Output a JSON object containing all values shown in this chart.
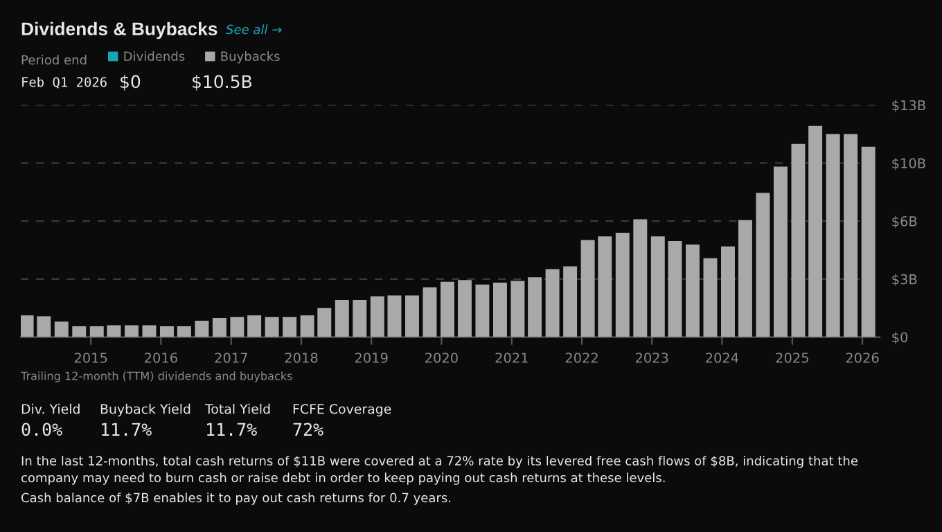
{
  "chart_data": {
    "type": "bar",
    "title": "Dividends & Buybacks",
    "x": [
      "2014-02",
      "2014-05",
      "2014-08",
      "2014-11",
      "2015-02",
      "2015-05",
      "2015-08",
      "2015-11",
      "2016-02",
      "2016-05",
      "2016-08",
      "2016-11",
      "2017-02",
      "2017-05",
      "2017-08",
      "2017-11",
      "2018-02",
      "2018-05",
      "2018-08",
      "2018-11",
      "2019-02",
      "2019-05",
      "2019-08",
      "2019-11",
      "2020-02",
      "2020-05",
      "2020-08",
      "2020-11",
      "2021-02",
      "2021-05",
      "2021-08",
      "2021-11",
      "2022-02",
      "2022-05",
      "2022-08",
      "2022-11",
      "2023-02",
      "2023-05",
      "2023-08",
      "2023-11",
      "2024-02",
      "2024-05",
      "2024-08",
      "2024-11",
      "2025-02",
      "2025-05",
      "2025-08",
      "2025-11",
      "2026-02"
    ],
    "series": [
      {
        "name": "Dividends",
        "color": "#1aa3b4",
        "values": [
          0,
          0,
          0,
          0,
          0,
          0,
          0,
          0,
          0,
          0,
          0,
          0,
          0,
          0,
          0,
          0,
          0,
          0,
          0,
          0,
          0,
          0,
          0,
          0,
          0,
          0,
          0,
          0,
          0,
          0,
          0,
          0,
          0,
          0,
          0,
          0,
          0,
          0,
          0,
          0,
          0,
          0,
          0,
          0,
          0,
          0,
          0,
          0,
          0
        ]
      },
      {
        "name": "Buybacks",
        "color": "#a9a9a9",
        "values": [
          1.2,
          1.15,
          0.85,
          0.6,
          0.6,
          0.65,
          0.65,
          0.65,
          0.6,
          0.6,
          0.9,
          1.05,
          1.1,
          1.2,
          1.1,
          1.1,
          1.2,
          1.6,
          2.05,
          2.05,
          2.25,
          2.3,
          2.3,
          2.75,
          3.05,
          3.15,
          2.9,
          3.0,
          3.1,
          3.3,
          3.75,
          3.9,
          5.35,
          5.55,
          5.75,
          6.5,
          5.55,
          5.3,
          5.1,
          4.35,
          5.0,
          6.45,
          7.95,
          9.4,
          10.65,
          11.65,
          11.2,
          11.2,
          10.5
        ]
      }
    ],
    "xlim": [
      "2014-01",
      "2026-04"
    ],
    "xticks": [
      {
        "value": "2015",
        "label": "2015"
      },
      {
        "value": "2016",
        "label": "2016"
      },
      {
        "value": "2017",
        "label": "2017"
      },
      {
        "value": "2018",
        "label": "2018"
      },
      {
        "value": "2019",
        "label": "2019"
      },
      {
        "value": "2020",
        "label": "2020"
      },
      {
        "value": "2021",
        "label": "2021"
      },
      {
        "value": "2022",
        "label": "2022"
      },
      {
        "value": "2023",
        "label": "2023"
      },
      {
        "value": "2024",
        "label": "2024"
      },
      {
        "value": "2025",
        "label": "2025"
      },
      {
        "value": "2026",
        "label": "2026"
      }
    ],
    "ylim": [
      0,
      12.8
    ],
    "yticks": [
      {
        "value": 0,
        "label": "$0"
      },
      {
        "value": 3.2,
        "label": "$3B"
      },
      {
        "value": 6.4,
        "label": "$6B"
      },
      {
        "value": 9.6,
        "label": "$10B"
      },
      {
        "value": 12.8,
        "label": "$13B"
      }
    ],
    "grid": "y",
    "legend": "top left",
    "annotations": [
      "See all →",
      "Period end",
      "Feb Q1 2026",
      "$0",
      "$10.5B",
      "Trailing 12-month (TTM) dividends and buybacks",
      "Div. Yield",
      "0.0%",
      "Buyback Yield",
      "11.7%",
      "Total Yield",
      "11.7%",
      "FCFE Coverage",
      "72%",
      "In the last 12-months, total cash returns of $11B were covered at a 72% rate by its levered free cash flows of $8B, indicating that the company may need to burn cash or raise debt in order to keep paying out cash returns at these levels.",
      "Cash balance of $7B enables it to pay out cash returns for 0.7 years."
    ]
  }
}
